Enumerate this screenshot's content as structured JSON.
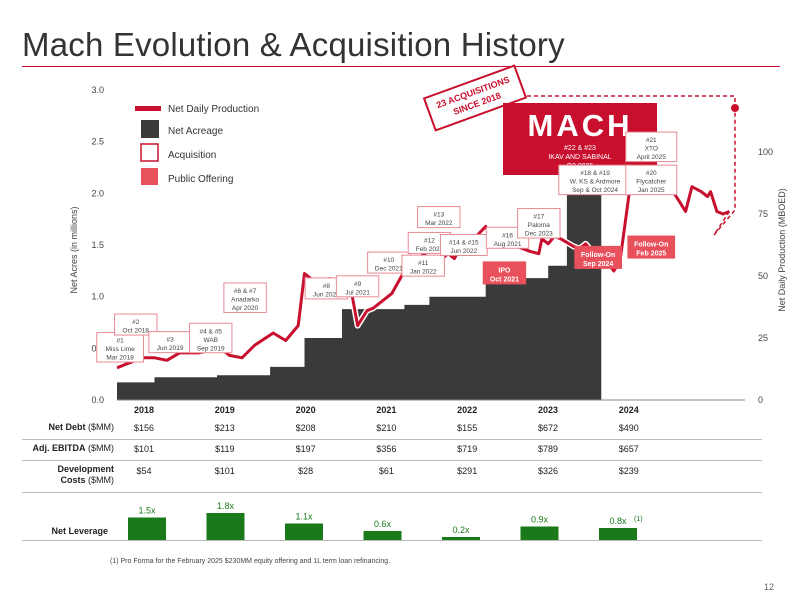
{
  "page": {
    "title": "Mach Evolution & Acquisition History",
    "page_number": "12",
    "footnote": "(1) Pro Forma for the February 2025 $230MM equity offering and 1L term loan refinancing."
  },
  "colors": {
    "accent": "#c8102e",
    "acreage": "#3a3a3a",
    "offering": "#e8505b",
    "leverage": "#1a7a1a"
  },
  "legend": {
    "production": "Net Daily Production",
    "acreage": "Net Acreage",
    "acquisition": "Acquisition",
    "offering": "Public Offering"
  },
  "callout": {
    "line1": "23 ACQUISITIONS",
    "line2": "SINCE 2018"
  },
  "logo": {
    "text": "MACH",
    "line1": "#22 & #23",
    "line2": "IKAV AND SABINAL",
    "line3": "Q3 2025"
  },
  "chart_data": {
    "type": "area",
    "ylabel": "Net Acres (in millions)",
    "y2label": "Net Daily Production (MBOED)",
    "ylim": [
      0,
      3.0
    ],
    "y2lim": [
      0,
      125
    ],
    "yticks": [
      "0.0",
      "0.5",
      "1.0",
      "1.5",
      "2.0",
      "2.5",
      "3.0"
    ],
    "y2ticks": [
      "0",
      "25",
      "50",
      "75",
      "100"
    ],
    "years": [
      "2018",
      "2019",
      "2020",
      "2021",
      "2022",
      "2023",
      "2024"
    ],
    "series": [
      {
        "name": "Net Acreage",
        "points": [
          [
            2018.0,
            0.17
          ],
          [
            2018.6,
            0.17
          ],
          [
            2018.6,
            0.22
          ],
          [
            2019.6,
            0.22
          ],
          [
            2019.6,
            0.24
          ],
          [
            2020.45,
            0.24
          ],
          [
            2020.45,
            0.32
          ],
          [
            2021.0,
            0.32
          ],
          [
            2021.0,
            0.6
          ],
          [
            2021.6,
            0.6
          ],
          [
            2021.6,
            0.88
          ],
          [
            2022.6,
            0.88
          ],
          [
            2022.6,
            0.92
          ],
          [
            2023.0,
            0.92
          ],
          [
            2023.0,
            1.0
          ],
          [
            2023.9,
            1.0
          ],
          [
            2023.9,
            1.14
          ],
          [
            2024.5,
            1.14
          ],
          [
            2024.5,
            1.18
          ],
          [
            2024.9,
            1.18
          ],
          [
            2024.9,
            1.3
          ],
          [
            2025.2,
            1.3
          ],
          [
            2025.2,
            2.08
          ],
          [
            2025.75,
            2.08
          ],
          [
            2025.75,
            2.8
          ]
        ]
      },
      {
        "name": "Net Daily Production",
        "points": [
          [
            2018.0,
            13
          ],
          [
            2018.2,
            15
          ],
          [
            2018.4,
            17
          ],
          [
            2018.6,
            17
          ],
          [
            2018.8,
            16
          ],
          [
            2019.0,
            19
          ],
          [
            2019.3,
            19
          ],
          [
            2019.5,
            20
          ],
          [
            2019.6,
            22
          ],
          [
            2019.8,
            18
          ],
          [
            2020.0,
            17
          ],
          [
            2020.2,
            22
          ],
          [
            2020.5,
            27
          ],
          [
            2020.7,
            24
          ],
          [
            2020.9,
            30
          ],
          [
            2021.0,
            51
          ],
          [
            2021.2,
            47
          ],
          [
            2021.4,
            49
          ],
          [
            2021.6,
            47
          ],
          [
            2021.75,
            44
          ],
          [
            2021.85,
            30
          ],
          [
            2022.0,
            36
          ],
          [
            2022.1,
            37
          ],
          [
            2022.3,
            41
          ],
          [
            2022.4,
            43
          ],
          [
            2022.6,
            52
          ],
          [
            2022.8,
            55
          ],
          [
            2022.9,
            59
          ],
          [
            2023.0,
            57
          ],
          [
            2023.15,
            56
          ],
          [
            2023.3,
            59
          ],
          [
            2023.4,
            57
          ],
          [
            2023.5,
            62
          ],
          [
            2023.6,
            60
          ],
          [
            2023.75,
            66
          ],
          [
            2023.9,
            70
          ],
          [
            2024.0,
            65
          ],
          [
            2024.3,
            63
          ],
          [
            2024.6,
            60
          ],
          [
            2024.75,
            59
          ],
          [
            2024.8,
            65
          ],
          [
            2024.9,
            63
          ],
          [
            2025.0,
            66
          ],
          [
            2025.1,
            65
          ],
          [
            2025.3,
            62
          ],
          [
            2025.4,
            61
          ],
          [
            2025.5,
            63
          ],
          [
            2025.6,
            60
          ],
          [
            2025.7,
            56
          ],
          [
            2025.8,
            57
          ],
          [
            2025.95,
            52
          ],
          [
            2026.05,
            56
          ],
          [
            2026.2,
            84
          ],
          [
            2026.4,
            89
          ],
          [
            2026.6,
            88
          ],
          [
            2026.8,
            86
          ],
          [
            2026.9,
            84
          ],
          [
            2027.0,
            80
          ],
          [
            2027.1,
            76
          ],
          [
            2027.2,
            86
          ],
          [
            2027.35,
            84
          ],
          [
            2027.45,
            82
          ],
          [
            2027.5,
            84
          ],
          [
            2027.6,
            76
          ],
          [
            2027.7,
            75
          ],
          [
            2027.8,
            76
          ]
        ]
      }
    ],
    "annotations": [
      {
        "kind": "acquisition",
        "x": 2018.05,
        "y": 0.51,
        "lines": [
          "#1",
          "Miss Lime",
          "Mar 2018"
        ]
      },
      {
        "kind": "acquisition",
        "x": 2018.3,
        "y": 0.73,
        "lines": [
          "#2",
          "Oct 2018"
        ]
      },
      {
        "kind": "acquisition",
        "x": 2018.85,
        "y": 0.56,
        "lines": [
          "#3",
          "Jun 2019"
        ]
      },
      {
        "kind": "acquisition",
        "x": 2019.5,
        "y": 0.6,
        "lines": [
          "#4 & #5",
          "WAB",
          "Sep 2019"
        ]
      },
      {
        "kind": "acquisition",
        "x": 2020.05,
        "y": 0.99,
        "lines": [
          "#6 & #7",
          "Anadarko",
          "Apr 2020"
        ]
      },
      {
        "kind": "acquisition",
        "x": 2021.35,
        "y": 1.08,
        "lines": [
          "#8",
          "Jun 2021"
        ]
      },
      {
        "kind": "acquisition",
        "x": 2021.85,
        "y": 1.1,
        "lines": [
          "#9",
          "Jul 2021"
        ]
      },
      {
        "kind": "acquisition",
        "x": 2022.35,
        "y": 1.33,
        "lines": [
          "#10",
          "Dec 2021"
        ]
      },
      {
        "kind": "acquisition",
        "x": 2022.9,
        "y": 1.3,
        "lines": [
          "#11",
          "Jan 2022"
        ]
      },
      {
        "kind": "acquisition",
        "x": 2023.0,
        "y": 1.52,
        "lines": [
          "#12",
          "Feb 2022"
        ]
      },
      {
        "kind": "acquisition",
        "x": 2023.15,
        "y": 1.77,
        "lines": [
          "#13",
          "Mar 2022"
        ]
      },
      {
        "kind": "acquisition",
        "x": 2023.55,
        "y": 1.5,
        "lines": [
          "#14 & #15",
          "Jun 2022"
        ]
      },
      {
        "kind": "acquisition",
        "x": 2024.25,
        "y": 1.57,
        "lines": [
          "#16",
          "Aug 2021"
        ]
      },
      {
        "kind": "acquisition",
        "x": 2024.75,
        "y": 1.71,
        "lines": [
          "#17",
          "Paloma",
          "Dec 2023"
        ]
      },
      {
        "kind": "acquisition",
        "x": 2025.65,
        "y": 2.13,
        "lines": [
          "#18 & #19",
          "W. KS & Ardmore",
          "Sep & Oct 2024"
        ]
      },
      {
        "kind": "acquisition",
        "x": 2026.55,
        "y": 2.13,
        "lines": [
          "#20",
          "Flycatcher",
          "Jan 2025"
        ]
      },
      {
        "kind": "acquisition",
        "x": 2026.55,
        "y": 2.45,
        "lines": [
          "#21",
          "XTO",
          "April 2025"
        ]
      },
      {
        "kind": "offering",
        "x": 2024.2,
        "y": 1.23,
        "lines": [
          "IPO",
          "Oct 2021"
        ]
      },
      {
        "kind": "offering",
        "x": 2025.7,
        "y": 1.38,
        "lines": [
          "Follow-On",
          "Sep 2024"
        ]
      },
      {
        "kind": "offering",
        "x": 2026.55,
        "y": 1.48,
        "lines": [
          "Follow-On",
          "Feb 2025"
        ]
      }
    ]
  },
  "table": {
    "rows": [
      {
        "label": "Net Debt",
        "unit": "($MM)",
        "values": [
          "$156",
          "$213",
          "$208",
          "$210",
          "$155",
          "$672",
          "$490"
        ]
      },
      {
        "label": "Adj. EBITDA",
        "unit": "($MM)",
        "values": [
          "$101",
          "$119",
          "$197",
          "$356",
          "$719",
          "$789",
          "$657"
        ]
      },
      {
        "label": "Development",
        "label2": "Costs",
        "unit": "($MM)",
        "values": [
          "$54",
          "$101",
          "$28",
          "$61",
          "$291",
          "$326",
          "$239"
        ]
      }
    ]
  },
  "leverage": {
    "label": "Net Leverage",
    "values": [
      1.5,
      1.8,
      1.1,
      0.6,
      0.2,
      0.9,
      0.8
    ],
    "labels": [
      "1.5x",
      "1.8x",
      "1.1x",
      "0.6x",
      "0.2x",
      "0.9x",
      "0.8x"
    ],
    "last_note": "(1)"
  }
}
